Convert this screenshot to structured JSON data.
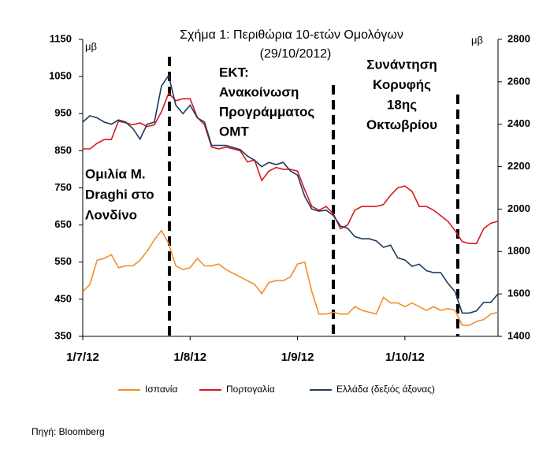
{
  "chart_data": {
    "type": "line",
    "title": "Σχήμα 1: Περιθώρια 10-ετών Ομολόγων",
    "subtitle": "(29/10/2012)",
    "y_label": "μβ",
    "y2_label": "μβ",
    "source": "Πηγή: Bloomberg",
    "annotations": [
      [
        "Ομιλία Μ.",
        "Draghi στο",
        "Λονδίνο"
      ],
      [
        "ΕΚΤ:",
        "Ανακοίνωση",
        "Προγράμματος",
        "ΟΜΤ"
      ],
      [
        "Συνάντηση",
        "Κορυφής",
        "18ης",
        "Οκτωβρίου"
      ]
    ],
    "categories": [
      "1/7/12",
      null,
      null,
      null,
      null,
      null,
      null,
      null,
      null,
      null,
      null,
      null,
      null,
      null,
      null,
      "1/8/12",
      null,
      null,
      null,
      null,
      null,
      null,
      null,
      null,
      null,
      null,
      null,
      null,
      null,
      null,
      "1/9/12",
      null,
      null,
      null,
      null,
      null,
      null,
      null,
      null,
      null,
      null,
      null,
      null,
      null,
      null,
      "1/10/12",
      null,
      null,
      null,
      null,
      null,
      null,
      null,
      null,
      null,
      null,
      null,
      null,
      null
    ],
    "ylim": [
      350,
      1150
    ],
    "yticks": [
      350,
      450,
      550,
      650,
      750,
      850,
      950,
      1050,
      1150
    ],
    "y2lim": [
      1400,
      2800
    ],
    "y2ticks": [
      1400,
      1600,
      1800,
      2000,
      2200,
      2400,
      2600,
      2800
    ],
    "grid": false,
    "legend": "bottom",
    "series": [
      {
        "name": "Ισπανία",
        "color": "#f28e2b",
        "values": [
          470,
          490,
          555,
          560,
          570,
          535,
          540,
          540,
          555,
          580,
          610,
          635,
          600,
          540,
          530,
          535,
          560,
          540,
          540,
          545,
          530,
          520,
          510,
          500,
          490,
          465,
          495,
          500,
          500,
          510,
          545,
          550,
          470,
          410,
          410,
          415,
          410,
          410,
          430,
          420,
          415,
          410,
          455,
          440,
          440,
          430,
          440,
          430,
          420,
          430,
          420,
          425,
          420,
          380,
          380,
          390,
          395,
          410,
          415
        ]
      },
      {
        "name": "Πορτογαλία",
        "color": "#d7191c",
        "values": [
          855,
          855,
          870,
          880,
          880,
          930,
          925,
          920,
          925,
          915,
          920,
          955,
          1005,
          985,
          990,
          990,
          940,
          920,
          860,
          855,
          860,
          855,
          850,
          820,
          825,
          770,
          795,
          805,
          800,
          800,
          795,
          745,
          700,
          690,
          700,
          680,
          640,
          650,
          690,
          700,
          700,
          700,
          705,
          730,
          750,
          755,
          740,
          700,
          700,
          690,
          675,
          660,
          635,
          605,
          600,
          600,
          640,
          655,
          660
        ]
      },
      {
        "name": "Ελλάδα (δεξιός άξονας)",
        "color": "#1f3a5f",
        "axis": "y2",
        "values": [
          2410,
          2440,
          2430,
          2410,
          2400,
          2420,
          2410,
          2380,
          2330,
          2400,
          2410,
          2580,
          2630,
          2490,
          2450,
          2490,
          2430,
          2410,
          2300,
          2300,
          2300,
          2290,
          2280,
          2250,
          2230,
          2200,
          2220,
          2210,
          2220,
          2180,
          2160,
          2060,
          2000,
          1990,
          1995,
          1970,
          1920,
          1910,
          1870,
          1860,
          1860,
          1850,
          1820,
          1830,
          1770,
          1760,
          1730,
          1740,
          1710,
          1700,
          1700,
          1650,
          1610,
          1510,
          1510,
          1520,
          1560,
          1560,
          1600
        ]
      }
    ]
  }
}
